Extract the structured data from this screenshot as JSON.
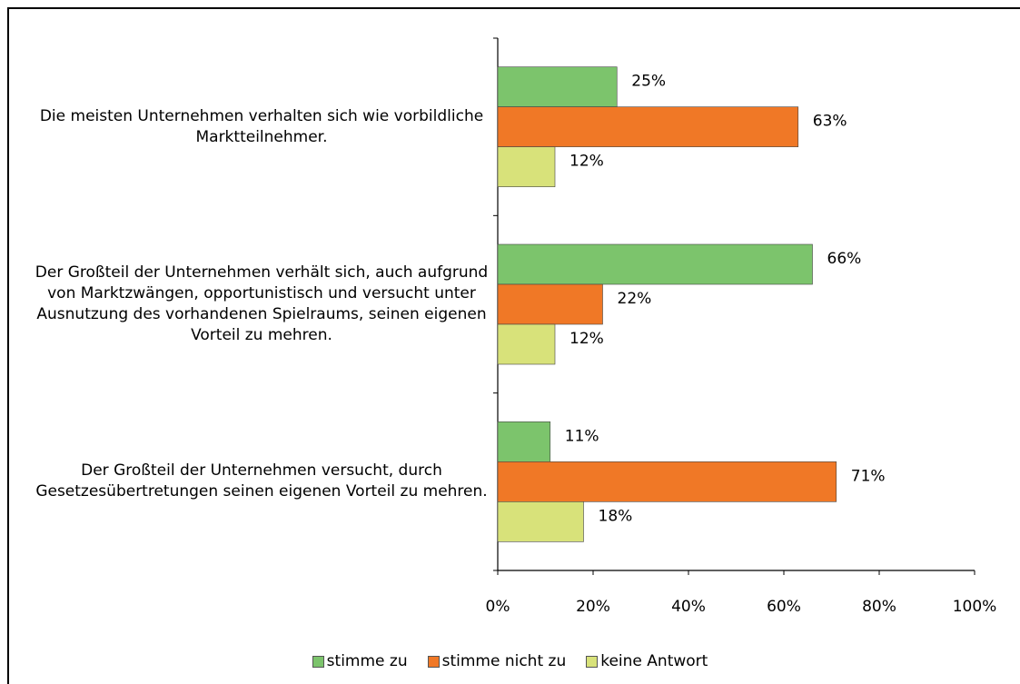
{
  "chart_data": {
    "type": "bar",
    "orientation": "horizontal",
    "categories": [
      "Die meisten Unternehmen verhalten sich wie vorbildliche Marktteilnehmer.",
      "Der Großteil der Unternehmen verhält sich, auch aufgrund von Marktzwängen, opportunistisch und versucht unter Ausnutzung des vorhandenen Spielraums, seinen eigenen Vorteil zu mehren.",
      "Der Großteil der Unternehmen versucht, durch Gesetzesübertretungen seinen eigenen Vorteil zu mehren."
    ],
    "series": [
      {
        "name": "stimme zu",
        "color": "#7cc46c",
        "values": [
          25,
          66,
          11
        ],
        "value_labels": [
          "25%",
          "66%",
          "11%"
        ]
      },
      {
        "name": "stimme nicht zu",
        "color": "#f07826",
        "values": [
          63,
          22,
          71
        ],
        "value_labels": [
          "63%",
          "22%",
          "71%"
        ]
      },
      {
        "name": "keine Antwort",
        "color": "#d8e27a",
        "values": [
          12,
          12,
          18
        ],
        "value_labels": [
          "12%",
          "12%",
          "18%"
        ]
      }
    ],
    "xlim": [
      0,
      100
    ],
    "xticks": [
      {
        "value": 0,
        "label": "0%"
      },
      {
        "value": 20,
        "label": "20%"
      },
      {
        "value": 40,
        "label": "40%"
      },
      {
        "value": 60,
        "label": "60%"
      },
      {
        "value": 80,
        "label": "80%"
      },
      {
        "value": 100,
        "label": "100%"
      }
    ],
    "legend": "bottom"
  }
}
